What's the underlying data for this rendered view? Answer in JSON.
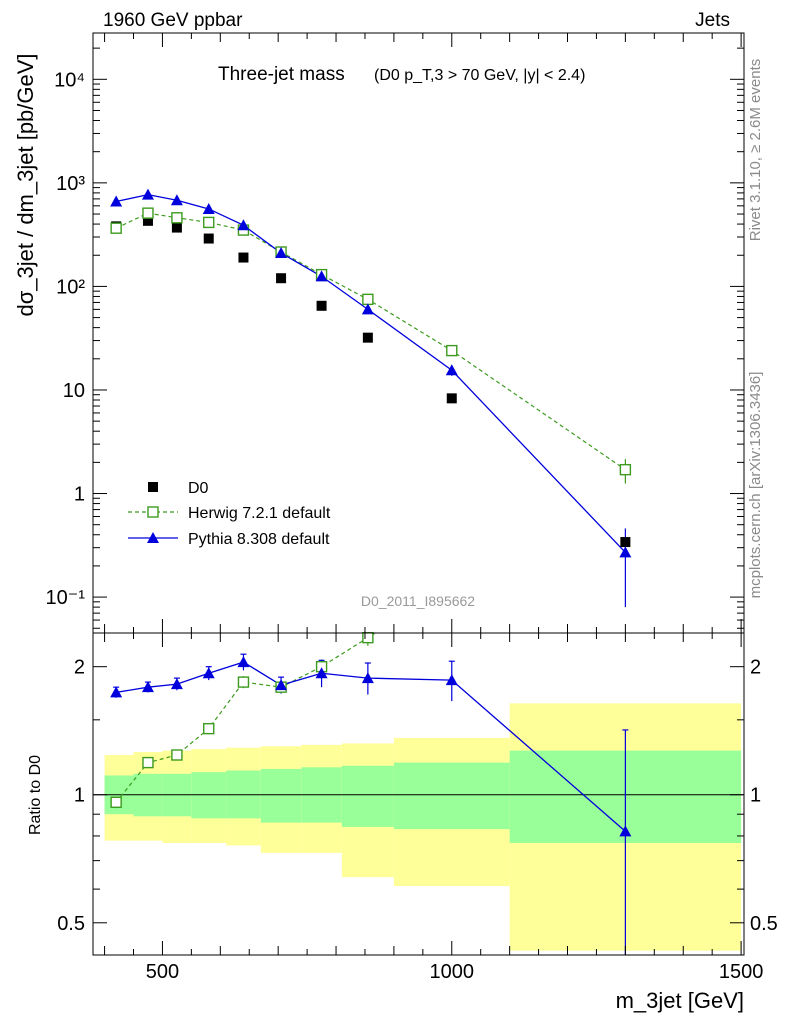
{
  "header": {
    "left": "1960 GeV ppbar",
    "right": "Jets"
  },
  "side": {
    "rivet": "Rivet 3.1.10, ≥ 2.6M events",
    "mcplots": "mcplots.cern.ch [arXiv:1306.3436]"
  },
  "colors": {
    "data": "#000000",
    "herwig": "#3c9b1e",
    "pythia": "#0000dd",
    "band_inner": "#99ff99",
    "band_outer": "#ffff99"
  },
  "chart_data": [
    {
      "type": "scatter",
      "panel": "main",
      "title": "Three-jet mass",
      "subtitle": "(D0 p_T,3 > 70 GeV, |y| < 2.4)",
      "watermark": "D0_2011_I895662",
      "ylabel": "dσ_3jet / dm_3jet [pb/GeV]",
      "yscale": "log",
      "xlim": [
        380,
        1505
      ],
      "ylim": [
        0.045,
        28000
      ],
      "ytick_labels": [
        "10⁻¹",
        "1",
        "10",
        "10²",
        "10³",
        "10⁴"
      ],
      "legend_position": "bottom-left",
      "series": [
        {
          "name": "D0",
          "style": "markers",
          "x": [
            420,
            475,
            525,
            580,
            640,
            705,
            775,
            855,
            1000,
            1300
          ],
          "y": [
            380,
            430,
            370,
            290,
            190,
            120,
            65,
            32,
            8.3,
            0.34
          ]
        },
        {
          "name": "Herwig 7.2.1 default",
          "style": "dashed-open-square",
          "x": [
            420,
            475,
            525,
            580,
            640,
            705,
            775,
            855,
            1000,
            1300
          ],
          "y": [
            365,
            510,
            460,
            415,
            350,
            215,
            130,
            75,
            24,
            1.7
          ],
          "yerr": [
            0,
            0,
            0,
            0,
            0,
            0,
            0,
            0,
            0,
            0.45
          ]
        },
        {
          "name": "Pythia 8.308 default",
          "style": "solid-triangle",
          "x": [
            420,
            475,
            525,
            580,
            640,
            705,
            775,
            855,
            1000,
            1300
          ],
          "y": [
            660,
            770,
            680,
            560,
            390,
            210,
            125,
            60,
            15.5,
            0.27
          ],
          "yerr": [
            0,
            0,
            0,
            0,
            0,
            0,
            0,
            0,
            1.8,
            0.19
          ]
        }
      ]
    },
    {
      "type": "scatter",
      "panel": "ratio",
      "ylabel": "Ratio to D0",
      "xlabel": "m_3jet [GeV]",
      "yscale": "log",
      "xlim": [
        380,
        1505
      ],
      "ylim": [
        0.42,
        2.4
      ],
      "xticks": [
        500,
        1000,
        1500
      ],
      "yticks": [
        0.5,
        1,
        2
      ],
      "bins": [
        {
          "lo": 400,
          "hi": 450,
          "inner": [
            0.9,
            1.11
          ],
          "outer": [
            0.78,
            1.24
          ]
        },
        {
          "lo": 450,
          "hi": 500,
          "inner": [
            0.89,
            1.12
          ],
          "outer": [
            0.78,
            1.26
          ]
        },
        {
          "lo": 500,
          "hi": 550,
          "inner": [
            0.89,
            1.12
          ],
          "outer": [
            0.77,
            1.27
          ]
        },
        {
          "lo": 550,
          "hi": 610,
          "inner": [
            0.88,
            1.13
          ],
          "outer": [
            0.77,
            1.28
          ]
        },
        {
          "lo": 610,
          "hi": 670,
          "inner": [
            0.88,
            1.14
          ],
          "outer": [
            0.76,
            1.29
          ]
        },
        {
          "lo": 670,
          "hi": 740,
          "inner": [
            0.86,
            1.15
          ],
          "outer": [
            0.73,
            1.3
          ]
        },
        {
          "lo": 740,
          "hi": 810,
          "inner": [
            0.86,
            1.16
          ],
          "outer": [
            0.73,
            1.31
          ]
        },
        {
          "lo": 810,
          "hi": 900,
          "inner": [
            0.84,
            1.17
          ],
          "outer": [
            0.64,
            1.32
          ]
        },
        {
          "lo": 900,
          "hi": 1100,
          "inner": [
            0.83,
            1.19
          ],
          "outer": [
            0.61,
            1.36
          ]
        },
        {
          "lo": 1100,
          "hi": 1500,
          "inner": [
            0.77,
            1.27
          ],
          "outer": [
            0.43,
            1.64
          ]
        }
      ],
      "series": [
        {
          "name": "Herwig 7.2.1 default",
          "x": [
            420,
            475,
            525,
            580,
            640,
            705,
            775,
            855
          ],
          "y": [
            0.96,
            1.19,
            1.24,
            1.43,
            1.84,
            1.79,
            2.0,
            2.34
          ],
          "yerr": [
            0.03,
            0.03,
            0.03,
            0.04,
            0.06,
            0.06,
            0.08,
            0.1
          ]
        },
        {
          "name": "Pythia 8.308 default",
          "x": [
            420,
            475,
            525,
            580,
            640,
            705,
            775,
            855,
            1000,
            1300
          ],
          "y": [
            1.74,
            1.79,
            1.82,
            1.93,
            2.05,
            1.81,
            1.93,
            1.88,
            1.86,
            0.82
          ],
          "yerr": [
            0.05,
            0.05,
            0.06,
            0.07,
            0.09,
            0.08,
            0.14,
            0.16,
            0.2,
            0.6
          ]
        }
      ]
    }
  ]
}
